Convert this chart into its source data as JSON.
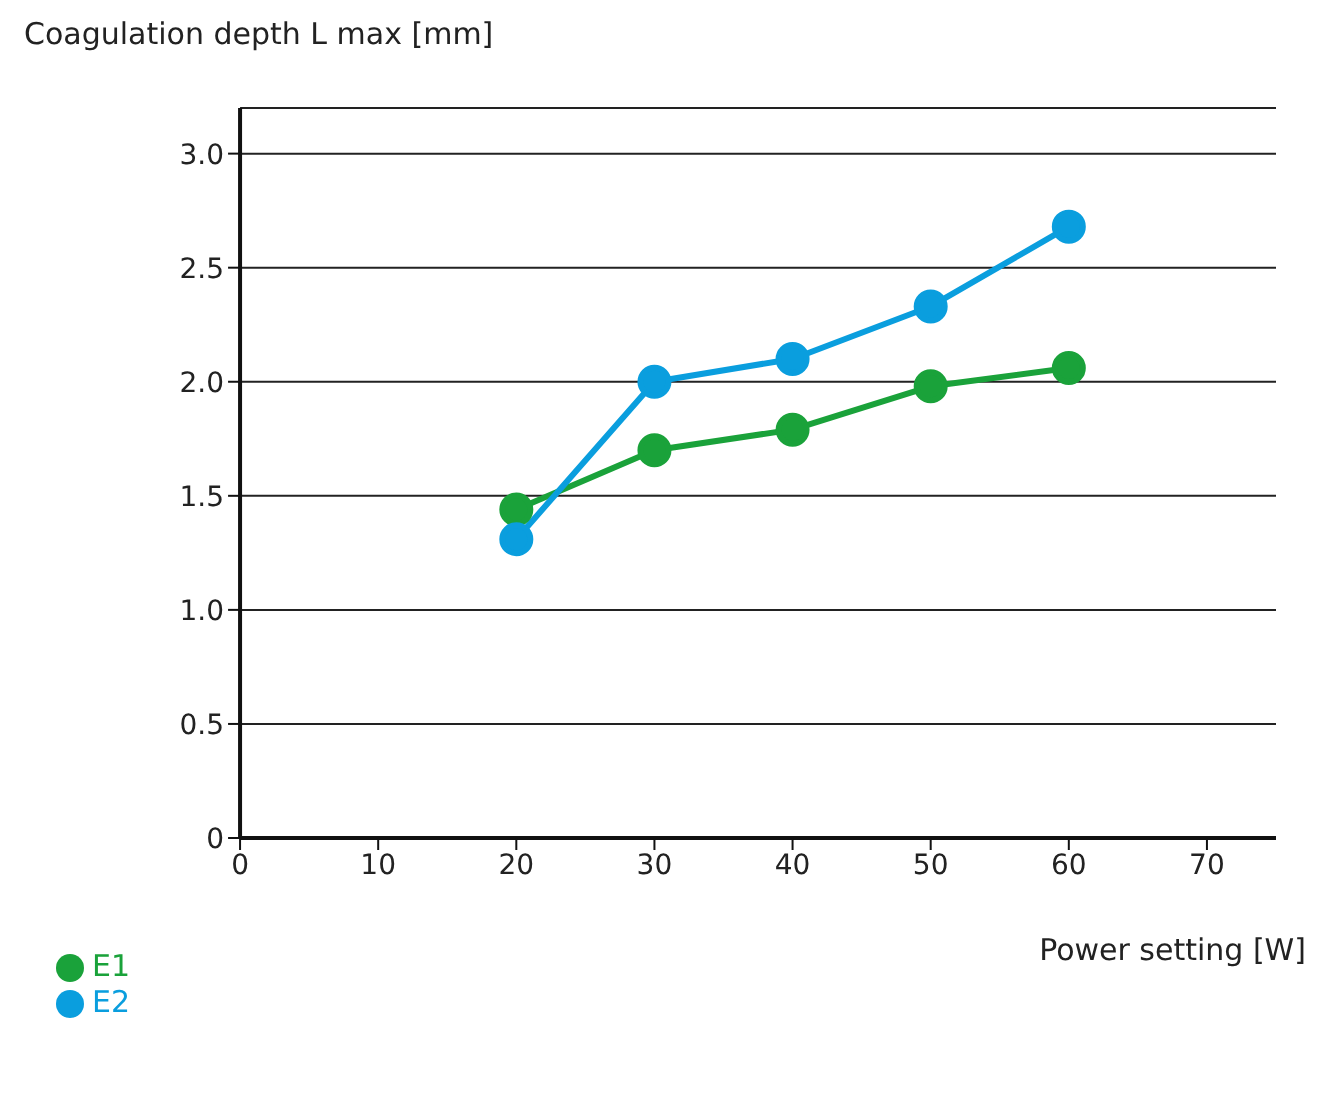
{
  "chart_data": {
    "type": "line",
    "ylabel": "Coagulation depth L max [mm]",
    "xlabel": "Power setting [W]",
    "x": [
      20,
      30,
      40,
      50,
      60
    ],
    "series": [
      {
        "name": "E1",
        "color": "#1aa23a",
        "values": [
          1.44,
          1.7,
          1.79,
          1.98,
          2.06
        ]
      },
      {
        "name": "E2",
        "color": "#0a9ede",
        "values": [
          1.31,
          2.0,
          2.1,
          2.33,
          2.68
        ]
      }
    ],
    "xlim": [
      0,
      75
    ],
    "xticks": [
      0,
      10,
      20,
      30,
      40,
      50,
      60,
      70
    ],
    "ylim": [
      0,
      3.2
    ],
    "yticks": [
      0,
      {
        "value": 0.5,
        "label": "0.5"
      },
      {
        "value": 1,
        "label": "1.0"
      },
      {
        "value": 1.5,
        "label": "1.5"
      },
      {
        "value": 2,
        "label": "2.0"
      },
      {
        "value": 2.5,
        "label": "2.5"
      },
      {
        "value": 3,
        "label": "3.0"
      }
    ],
    "grid": "y",
    "legend": "bottom left",
    "marker": "circle",
    "line_style": "solid"
  }
}
